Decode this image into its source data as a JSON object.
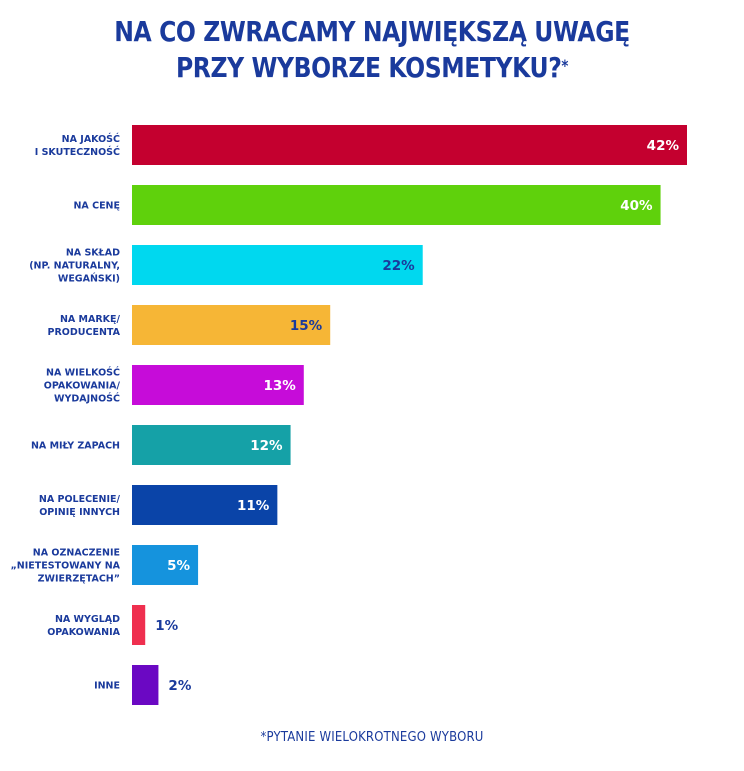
{
  "title": {
    "line1": "NA CO ZWRACAMY NAJWIĘKSZĄ UWAGĘ",
    "line2": "PRZY WYBORZE KOSMETYKU?",
    "marker": "*"
  },
  "footnote": "*PYTANIE WIELOKROTNEGO WYBORU",
  "chart_data": {
    "type": "bar",
    "orientation": "horizontal",
    "grid": false,
    "legend": "none",
    "categories": [
      [
        "NA JAKOŚĆ",
        "I SKUTECZNOŚĆ"
      ],
      [
        "NA CENĘ"
      ],
      [
        "NA SKŁAD",
        "(NP. NATURALNY,",
        "WEGAŃSKI)"
      ],
      [
        "NA MARKĘ/",
        "PRODUCENTA"
      ],
      [
        "NA WIELKOŚĆ",
        "OPAKOWANIA/",
        "WYDAJNOŚĆ"
      ],
      [
        "NA MIŁY ZAPACH"
      ],
      [
        "NA POLECENIE/",
        "OPINIĘ INNYCH"
      ],
      [
        "NA OZNACZENIE",
        "„NIETESTOWANY NA",
        "ZWIERZĘTACH”"
      ],
      [
        "NA WYGLĄD",
        "OPAKOWANIA"
      ],
      [
        "INNE"
      ]
    ],
    "values": [
      42,
      40,
      22,
      15,
      13,
      12,
      11,
      5,
      1,
      2
    ],
    "value_labels": [
      "42%",
      "40%",
      "22%",
      "15%",
      "13%",
      "12%",
      "11%",
      "5%",
      "1%",
      "2%"
    ],
    "colors": [
      "#c4002f",
      "#5fd10c",
      "#00d8ef",
      "#f6b636",
      "#c60cd9",
      "#15a1a7",
      "#0a44a8",
      "#1593dd",
      "#ef2f4f",
      "#6b08c3"
    ],
    "label_colors": [
      "#ffffff",
      "#ffffff",
      "#1a3a9c",
      "#1a3a9c",
      "#ffffff",
      "#ffffff",
      "#ffffff",
      "#ffffff",
      "#1a3a9c",
      "#1a3a9c"
    ],
    "label_inside": [
      true,
      true,
      true,
      true,
      true,
      true,
      true,
      true,
      false,
      false
    ],
    "xlim": [
      0,
      42
    ]
  }
}
